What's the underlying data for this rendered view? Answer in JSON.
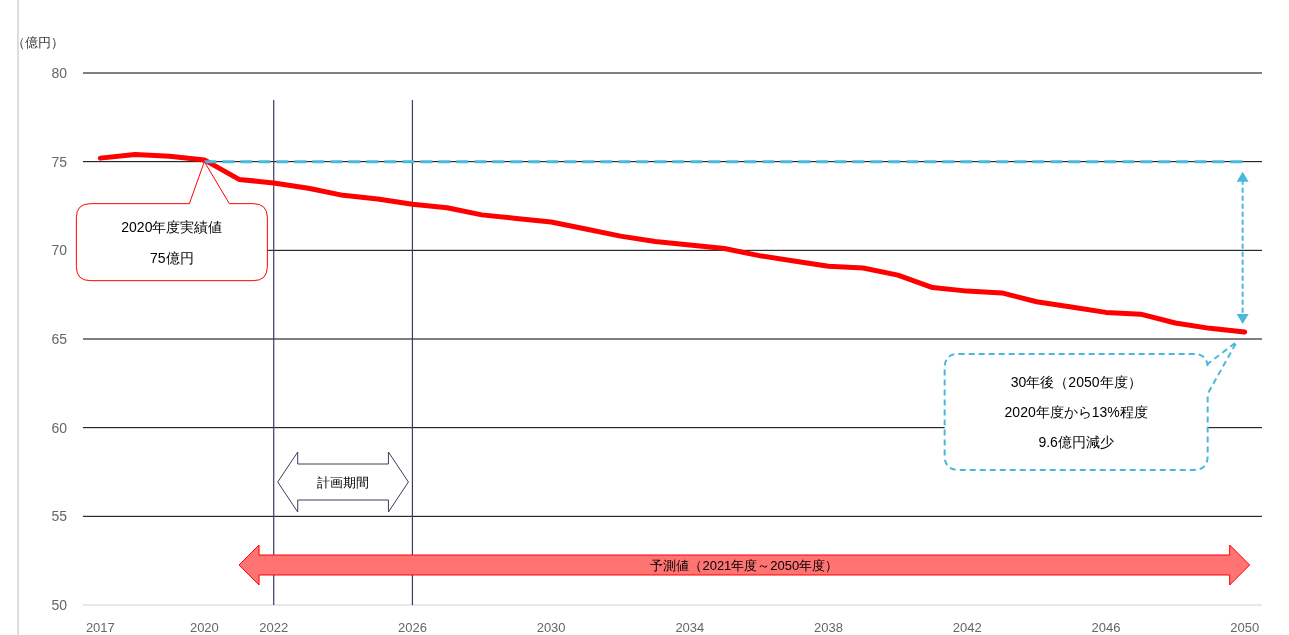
{
  "chart_data": {
    "type": "line",
    "ylabel": "（億円）",
    "x": [
      2017,
      2018,
      2019,
      2020,
      2021,
      2022,
      2023,
      2024,
      2025,
      2026,
      2027,
      2028,
      2029,
      2030,
      2031,
      2032,
      2033,
      2034,
      2035,
      2036,
      2037,
      2038,
      2039,
      2040,
      2041,
      2042,
      2043,
      2044,
      2045,
      2046,
      2047,
      2048,
      2049,
      2050
    ],
    "series": [
      {
        "color": "#ff0000",
        "values": [
          75.2,
          75.4,
          75.3,
          75.1,
          74.0,
          73.8,
          73.5,
          73.1,
          72.9,
          72.6,
          72.4,
          72.0,
          71.8,
          71.6,
          71.2,
          70.8,
          70.5,
          70.3,
          70.1,
          69.7,
          69.4,
          69.1,
          69.0,
          68.6,
          67.9,
          67.7,
          67.6,
          67.1,
          66.8,
          66.5,
          66.4,
          65.9,
          65.6,
          65.4
        ]
      },
      {
        "type": "line",
        "color": "#4ab8dc",
        "line_style": "dashed",
        "x": [
          2020,
          2050
        ],
        "values": [
          75,
          75
        ]
      }
    ],
    "xlim": [
      2016.5,
      2050.5
    ],
    "xticks": [
      2017,
      2020,
      2022,
      2026,
      2030,
      2034,
      2038,
      2042,
      2046,
      2050
    ],
    "ylim": [
      50,
      80
    ],
    "yticks": [
      50,
      55,
      60,
      65,
      70,
      75,
      80
    ],
    "grid": "y",
    "ref_lines": [
      {
        "axis": "x",
        "value": 2022,
        "color": "#3c3c5c"
      },
      {
        "axis": "x",
        "value": 2026,
        "color": "#3c3c5c"
      }
    ],
    "annotations": [
      "2020年度実績値\n75億円",
      "30年後（2050年度）\n2020年度から13%程度\n9.6億円減少",
      "計画期間",
      "予測値（2021年度～2050年度）"
    ]
  }
}
